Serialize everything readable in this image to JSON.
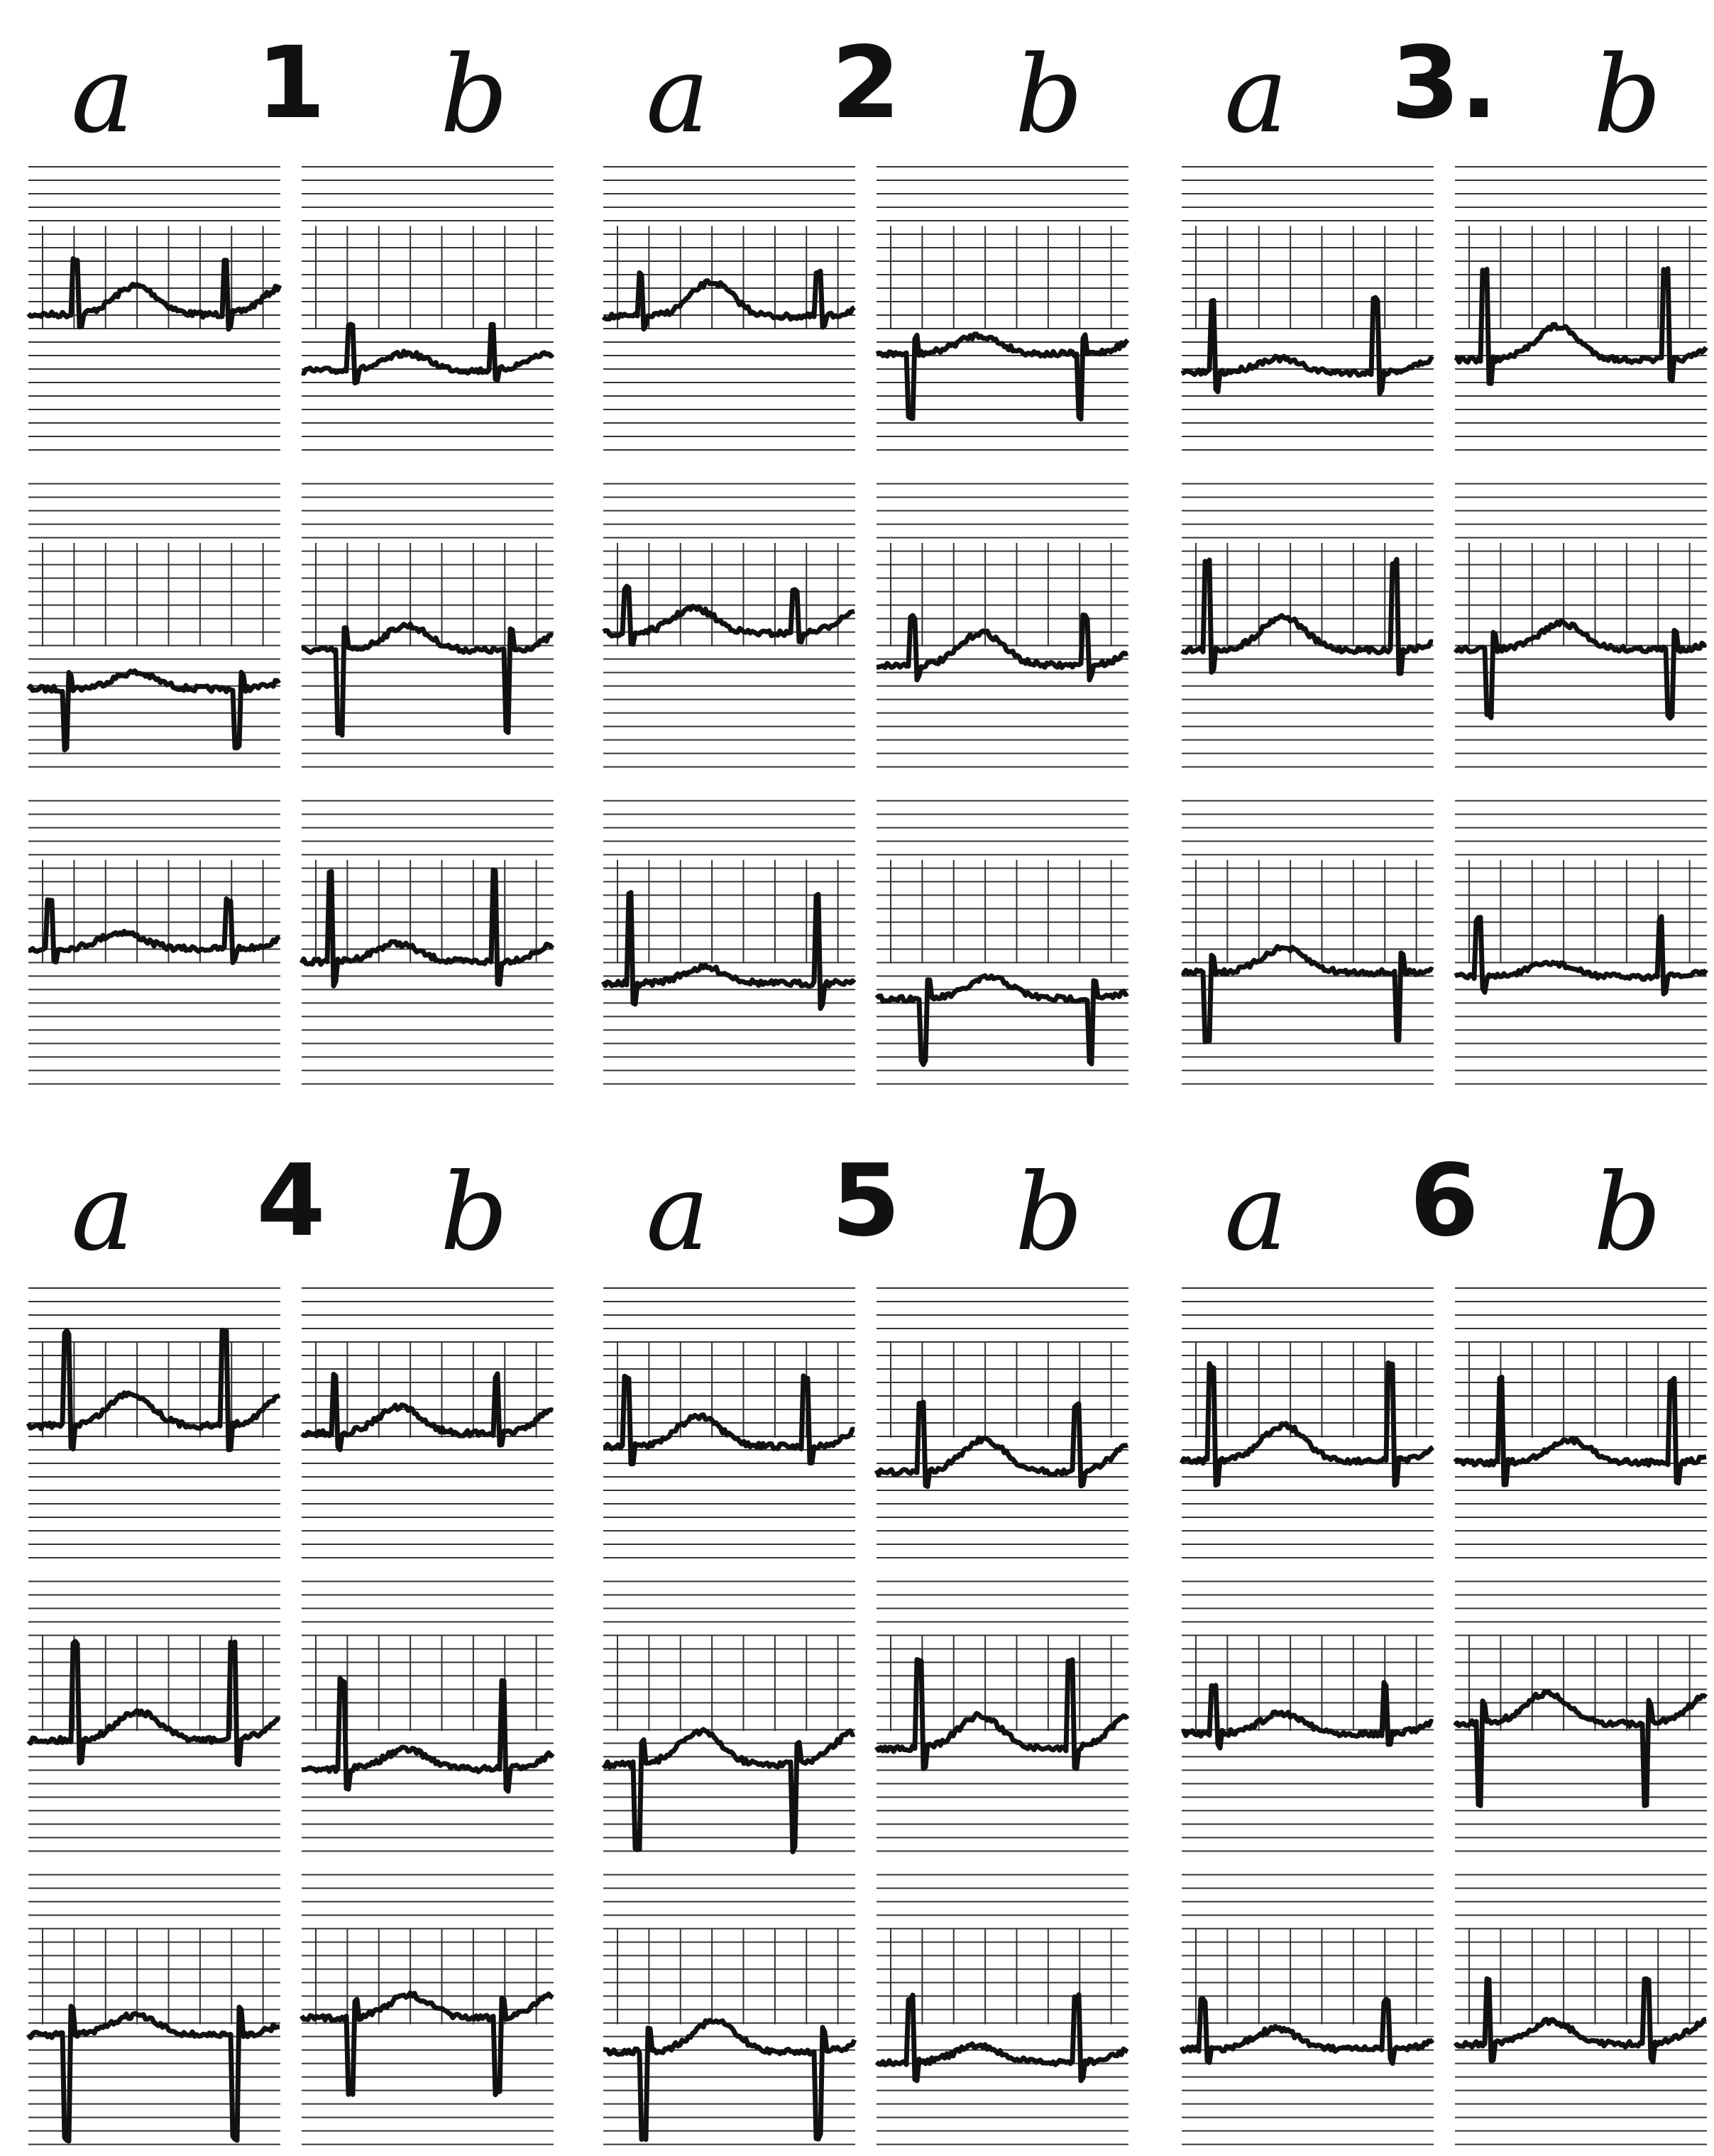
{
  "panels": [
    {
      "left": "a",
      "number": "1",
      "right": "b"
    },
    {
      "left": "a",
      "number": "2",
      "right": "b"
    },
    {
      "left": "a",
      "number": "3.",
      "right": "b"
    },
    {
      "left": "a",
      "number": "4",
      "right": "b"
    },
    {
      "left": "a",
      "number": "5",
      "right": "b"
    },
    {
      "left": "a",
      "number": "6",
      "right": "b"
    }
  ]
}
